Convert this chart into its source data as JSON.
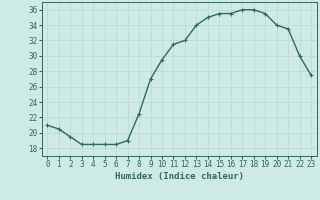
{
  "x": [
    0,
    1,
    2,
    3,
    4,
    5,
    6,
    7,
    8,
    9,
    10,
    11,
    12,
    13,
    14,
    15,
    16,
    17,
    18,
    19,
    20,
    21,
    22,
    23
  ],
  "y": [
    21.0,
    20.5,
    19.5,
    18.5,
    18.5,
    18.5,
    18.5,
    19.0,
    22.5,
    27.0,
    29.5,
    31.5,
    32.0,
    34.0,
    35.0,
    35.5,
    35.5,
    36.0,
    36.0,
    35.5,
    34.0,
    33.5,
    30.0,
    27.5
  ],
  "line_color": "#2d6b5e",
  "marker": "+",
  "marker_size": 3,
  "line_width": 1.0,
  "bg_color": "#cdeae5",
  "grid_color": "#b8d8d3",
  "xlabel": "Humidex (Indice chaleur)",
  "ylim": [
    17,
    37
  ],
  "xlim": [
    -0.5,
    23.5
  ],
  "yticks": [
    18,
    20,
    22,
    24,
    26,
    28,
    30,
    32,
    34,
    36
  ],
  "xtick_labels": [
    "0",
    "1",
    "2",
    "3",
    "4",
    "5",
    "6",
    "7",
    "8",
    "9",
    "10",
    "11",
    "12",
    "13",
    "14",
    "15",
    "16",
    "17",
    "18",
    "19",
    "20",
    "21",
    "22",
    "23"
  ],
  "tick_color": "#2d6b5e",
  "label_fontsize": 6.5,
  "tick_fontsize": 5.5
}
